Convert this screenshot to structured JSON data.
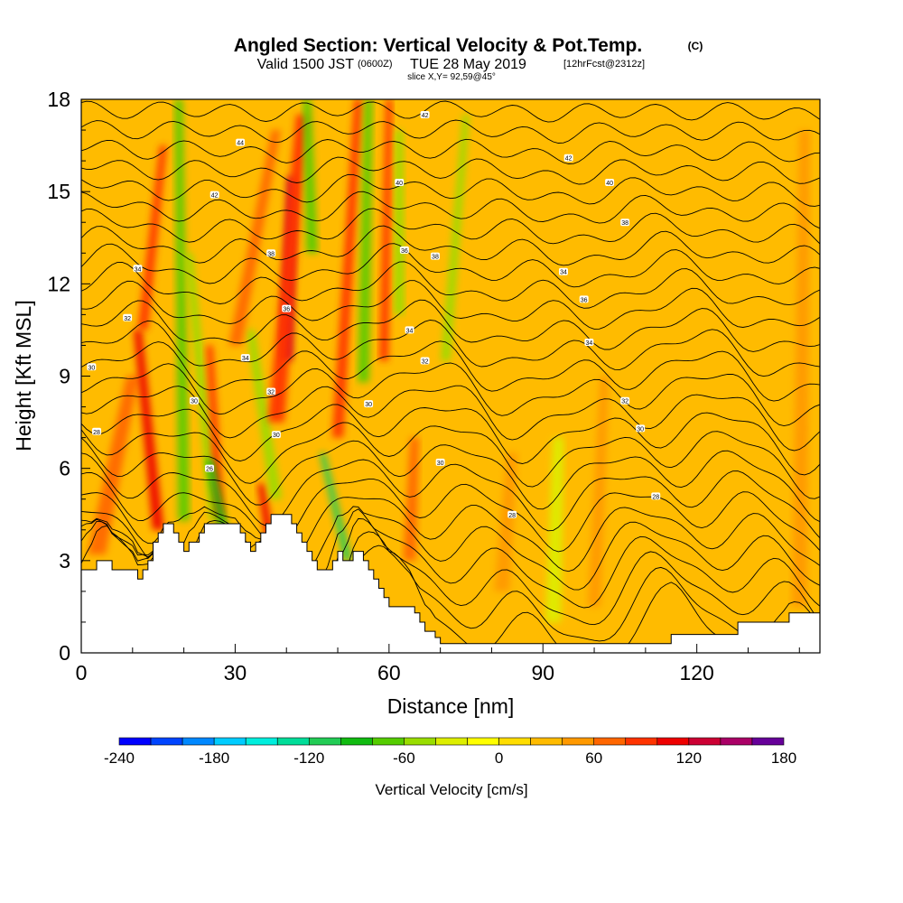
{
  "title": {
    "main": "Angled Section: Vertical Velocity & Pot.Temp.",
    "main_unit": "(C)",
    "valid_prefix": "Valid 1500 JST",
    "valid_utc": "(0600Z)",
    "valid_date": "TUE 28 May 2019",
    "forecast": "[12hrFcst@2312z]",
    "slice": "slice X,Y= 92,59@45°"
  },
  "chart_data": {
    "type": "heatmap",
    "title": "Angled Section: Vertical Velocity & Pot.Temp.",
    "xlabel": "Distance [nm]",
    "ylabel": "Height [Kft MSL]",
    "xlim": [
      0,
      144
    ],
    "ylim": [
      0,
      18
    ],
    "x_ticks": [
      "0",
      "30",
      "60",
      "90",
      "120"
    ],
    "y_ticks": [
      "0",
      "3",
      "6",
      "9",
      "12",
      "15",
      "18"
    ],
    "colorbar": {
      "label": "Vertical Velocity [cm/s]",
      "tick_labels": [
        "-240",
        "-180",
        "-120",
        "-60",
        "0",
        "60",
        "120",
        "180"
      ],
      "bins": [
        {
          "from": -240,
          "to": -220,
          "color": "#0000ff"
        },
        {
          "from": -220,
          "to": -200,
          "color": "#0044ff"
        },
        {
          "from": -200,
          "to": -180,
          "color": "#0088ff"
        },
        {
          "from": -180,
          "to": -160,
          "color": "#00ccff"
        },
        {
          "from": -160,
          "to": -140,
          "color": "#00eedd"
        },
        {
          "from": -140,
          "to": -120,
          "color": "#00dd99"
        },
        {
          "from": -120,
          "to": -100,
          "color": "#22cc55"
        },
        {
          "from": -100,
          "to": -80,
          "color": "#11bb11"
        },
        {
          "from": -80,
          "to": -60,
          "color": "#55cc00"
        },
        {
          "from": -60,
          "to": -40,
          "color": "#99dd00"
        },
        {
          "from": -40,
          "to": -20,
          "color": "#ddee00"
        },
        {
          "from": -20,
          "to": 0,
          "color": "#ffff00"
        },
        {
          "from": 0,
          "to": 20,
          "color": "#ffdd00"
        },
        {
          "from": 20,
          "to": 40,
          "color": "#ffbb00"
        },
        {
          "from": 40,
          "to": 60,
          "color": "#ff9900"
        },
        {
          "from": 60,
          "to": 80,
          "color": "#ff6600"
        },
        {
          "from": 80,
          "to": 100,
          "color": "#ff3300"
        },
        {
          "from": 100,
          "to": 120,
          "color": "#ee0000"
        },
        {
          "from": 120,
          "to": 140,
          "color": "#cc0033"
        },
        {
          "from": 140,
          "to": 160,
          "color": "#aa0066"
        },
        {
          "from": 160,
          "to": 180,
          "color": "#660099"
        }
      ]
    },
    "background_velocity": 20,
    "velocity_features": [
      {
        "value": 60,
        "x0": 3,
        "y0": 3.2,
        "x1": 10,
        "y1": 9,
        "width": 3.5
      },
      {
        "value": 100,
        "x0": 15,
        "y0": 4.0,
        "x1": 11,
        "y1": 10.5,
        "width": 2.2
      },
      {
        "value": 80,
        "x0": 12,
        "y0": 10.5,
        "x1": 16,
        "y1": 16.5,
        "width": 2.0
      },
      {
        "value": -80,
        "x0": 20,
        "y0": 4.3,
        "x1": 19,
        "y1": 18,
        "width": 2.2
      },
      {
        "value": -60,
        "x0": 26,
        "y0": 4.3,
        "x1": 21,
        "y1": 13,
        "width": 2.0
      },
      {
        "value": 80,
        "x0": 27,
        "y0": 4.4,
        "x1": 25,
        "y1": 10,
        "width": 1.8
      },
      {
        "value": -100,
        "x0": 29,
        "y0": 3.0,
        "x1": 25,
        "y1": 6.3,
        "width": 1.8
      },
      {
        "value": 100,
        "x0": 37,
        "y0": 3.5,
        "x1": 35,
        "y1": 5.5,
        "width": 1.8
      },
      {
        "value": -60,
        "x0": 38,
        "y0": 5.0,
        "x1": 33,
        "y1": 10.5,
        "width": 2.2
      },
      {
        "value": 120,
        "x0": 40,
        "y0": 9.5,
        "x1": 41,
        "y1": 15.5,
        "width": 2.4
      },
      {
        "value": 90,
        "x0": 38,
        "y0": 7.5,
        "x1": 43,
        "y1": 17.5,
        "width": 3.2
      },
      {
        "value": 60,
        "x0": 30,
        "y0": 10,
        "x1": 38,
        "y1": 17,
        "width": 2.5
      },
      {
        "value": -80,
        "x0": 45,
        "y0": 13,
        "x1": 44,
        "y1": 18,
        "width": 2.2
      },
      {
        "value": -120,
        "x0": 52,
        "y0": 3.0,
        "x1": 47,
        "y1": 6.5,
        "width": 1.6
      },
      {
        "value": 90,
        "x0": 50,
        "y0": 7,
        "x1": 54,
        "y1": 18,
        "width": 2.2
      },
      {
        "value": -80,
        "x0": 55,
        "y0": 8.8,
        "x1": 56,
        "y1": 18,
        "width": 2.2
      },
      {
        "value": 80,
        "x0": 59,
        "y0": 9.5,
        "x1": 60,
        "y1": 18,
        "width": 1.8
      },
      {
        "value": -60,
        "x0": 62,
        "y0": 11,
        "x1": 62,
        "y1": 17,
        "width": 2.0
      },
      {
        "value": -60,
        "x0": 71,
        "y0": 9.5,
        "x1": 75,
        "y1": 17.5,
        "width": 1.8
      },
      {
        "value": 60,
        "x0": 64,
        "y0": 3.0,
        "x1": 65,
        "y1": 7,
        "width": 2.5
      },
      {
        "value": 40,
        "x0": 82,
        "y0": 2.0,
        "x1": 84,
        "y1": 6.5,
        "width": 3.0
      },
      {
        "value": 40,
        "x0": 100,
        "y0": 1.5,
        "x1": 102,
        "y1": 9,
        "width": 2.5
      },
      {
        "value": -40,
        "x0": 92,
        "y0": 1.0,
        "x1": 93,
        "y1": 7,
        "width": 3.0
      },
      {
        "value": 40,
        "x0": 140,
        "y0": 1.5,
        "x1": 141,
        "y1": 17,
        "width": 3.0
      }
    ],
    "terrain_x": [
      0,
      3,
      5,
      6,
      7,
      8,
      9,
      10,
      11,
      12,
      13,
      14,
      15,
      16,
      17,
      18,
      19,
      20,
      21,
      22,
      23,
      24,
      25,
      26,
      27,
      28,
      29,
      30,
      31,
      32,
      33,
      34,
      35,
      36,
      37,
      38,
      39,
      40,
      41,
      42,
      43,
      44,
      45,
      46,
      47,
      48,
      49,
      50,
      51,
      52,
      53,
      54,
      55,
      56,
      57,
      58,
      59,
      60,
      61,
      62,
      63,
      64,
      65,
      66,
      67,
      68,
      69,
      70,
      75,
      80,
      85,
      90,
      95,
      100,
      105,
      110,
      112,
      115,
      120,
      125,
      128,
      130,
      135,
      138,
      140,
      144
    ],
    "terrain_y": [
      2.7,
      3.0,
      3.0,
      2.7,
      2.7,
      2.7,
      2.7,
      2.7,
      2.4,
      2.7,
      3.0,
      3.6,
      3.9,
      4.2,
      4.2,
      3.9,
      3.6,
      3.3,
      3.6,
      3.6,
      3.9,
      4.2,
      4.2,
      4.2,
      4.2,
      4.2,
      4.2,
      4.2,
      3.9,
      3.6,
      3.3,
      3.6,
      3.9,
      4.2,
      4.5,
      4.5,
      4.5,
      4.5,
      4.2,
      3.9,
      3.6,
      3.3,
      3.0,
      2.7,
      2.7,
      2.7,
      3.0,
      3.3,
      3.0,
      3.0,
      3.3,
      3.3,
      3.0,
      2.7,
      2.4,
      2.1,
      1.8,
      1.5,
      1.5,
      1.5,
      1.5,
      1.5,
      1.3,
      1.0,
      0.7,
      0.7,
      0.5,
      0.3,
      0.3,
      0.3,
      0.3,
      0.3,
      0.3,
      0.3,
      0.3,
      0.3,
      0.3,
      0.6,
      0.6,
      0.6,
      1.0,
      1.0,
      1.0,
      1.3,
      1.3,
      1.3
    ],
    "isentropes_count": 27,
    "isentrope_labels": [
      {
        "x": 3,
        "y": 7.2,
        "text": "28"
      },
      {
        "x": 2,
        "y": 9.3,
        "text": "30"
      },
      {
        "x": 9,
        "y": 10.9,
        "text": "32"
      },
      {
        "x": 11,
        "y": 12.5,
        "text": "34"
      },
      {
        "x": 25,
        "y": 6.0,
        "text": "26"
      },
      {
        "x": 22,
        "y": 8.2,
        "text": "30"
      },
      {
        "x": 32,
        "y": 9.6,
        "text": "34"
      },
      {
        "x": 37,
        "y": 8.5,
        "text": "32"
      },
      {
        "x": 38,
        "y": 7.1,
        "text": "30"
      },
      {
        "x": 40,
        "y": 11.2,
        "text": "36"
      },
      {
        "x": 37,
        "y": 13.0,
        "text": "38"
      },
      {
        "x": 26,
        "y": 14.9,
        "text": "42"
      },
      {
        "x": 31,
        "y": 16.6,
        "text": "44"
      },
      {
        "x": 56,
        "y": 8.1,
        "text": "30"
      },
      {
        "x": 64,
        "y": 10.5,
        "text": "34"
      },
      {
        "x": 67,
        "y": 9.5,
        "text": "32"
      },
      {
        "x": 63,
        "y": 13.1,
        "text": "36"
      },
      {
        "x": 69,
        "y": 12.9,
        "text": "38"
      },
      {
        "x": 62,
        "y": 15.3,
        "text": "40"
      },
      {
        "x": 67,
        "y": 17.5,
        "text": "42"
      },
      {
        "x": 70,
        "y": 6.2,
        "text": "30"
      },
      {
        "x": 84,
        "y": 4.5,
        "text": "28"
      },
      {
        "x": 94,
        "y": 12.4,
        "text": "34"
      },
      {
        "x": 98,
        "y": 11.5,
        "text": "36"
      },
      {
        "x": 99,
        "y": 10.1,
        "text": "34"
      },
      {
        "x": 95,
        "y": 16.1,
        "text": "42"
      },
      {
        "x": 103,
        "y": 15.3,
        "text": "40"
      },
      {
        "x": 106,
        "y": 14.0,
        "text": "38"
      },
      {
        "x": 106,
        "y": 8.2,
        "text": "32"
      },
      {
        "x": 109,
        "y": 7.3,
        "text": "30"
      },
      {
        "x": 112,
        "y": 5.1,
        "text": "28"
      }
    ]
  }
}
